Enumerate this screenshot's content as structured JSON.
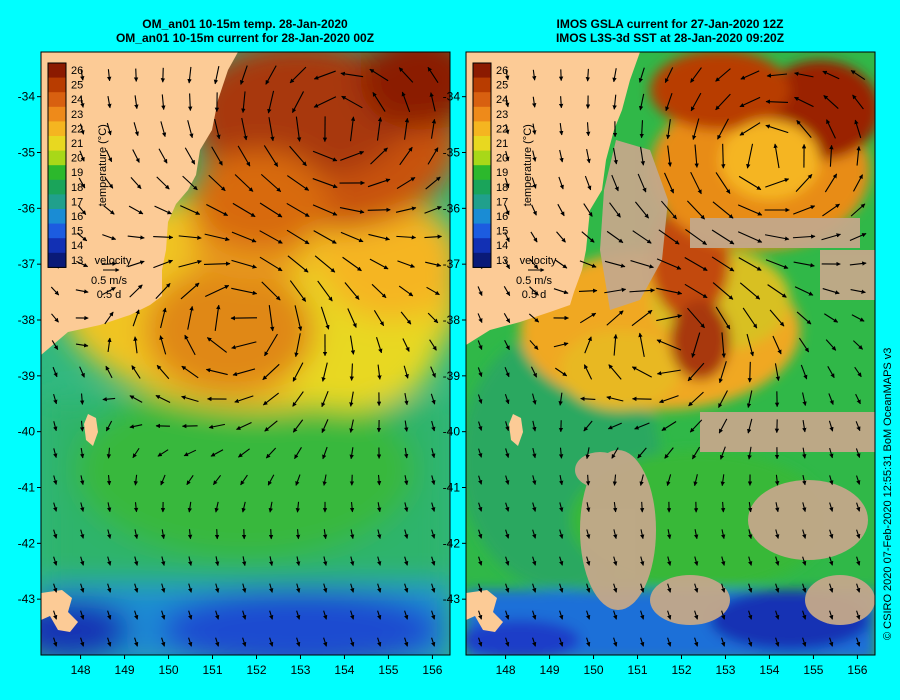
{
  "panels": [
    {
      "title_line1": "OM_an01 10-15m temp. 28-Jan-2020",
      "title_line2": "OM_an01 10-15m current for 28-Jan-2020 00Z"
    },
    {
      "title_line1": "IMOS GSLA current for 27-Jan-2020 12Z",
      "title_line2": "IMOS L3S-3d SST at 28-Jan-2020 09:20Z"
    }
  ],
  "map": {
    "lat_ticks": [
      "-34",
      "-35",
      "-36",
      "-37",
      "-38",
      "-39",
      "-40",
      "-41",
      "-42",
      "-43"
    ],
    "lon_ticks": [
      "148",
      "149",
      "150",
      "151",
      "152",
      "153",
      "154",
      "155",
      "156"
    ],
    "lon_range": [
      147.1,
      156.4
    ],
    "lat_range": [
      -44.0,
      -33.2
    ]
  },
  "colorbar": {
    "label": "temperature (°C)",
    "ticks": [
      "26",
      "25",
      "24",
      "23",
      "22",
      "21",
      "20",
      "19",
      "18",
      "17",
      "16",
      "15",
      "14",
      "13"
    ],
    "colors": [
      "#8b1a00",
      "#b83c00",
      "#d86010",
      "#ee8a1a",
      "#f5b520",
      "#e8d820",
      "#a8d818",
      "#2cb82c",
      "#1aa45a",
      "#20a08c",
      "#1a8cd4",
      "#1c5ce0",
      "#1230b4",
      "#0a1a78"
    ]
  },
  "legend": {
    "velocity_label": "velocity",
    "scale_label": "0.5 m/s",
    "time_label": "0.5 d"
  },
  "credit": "© CSIRO 2020  07-Feb-2020 12:55:31 BoM OceanMAPS v3",
  "colors": {
    "background": "#00ffff",
    "land": "#fccb96",
    "cloud": "#c4a88a"
  }
}
